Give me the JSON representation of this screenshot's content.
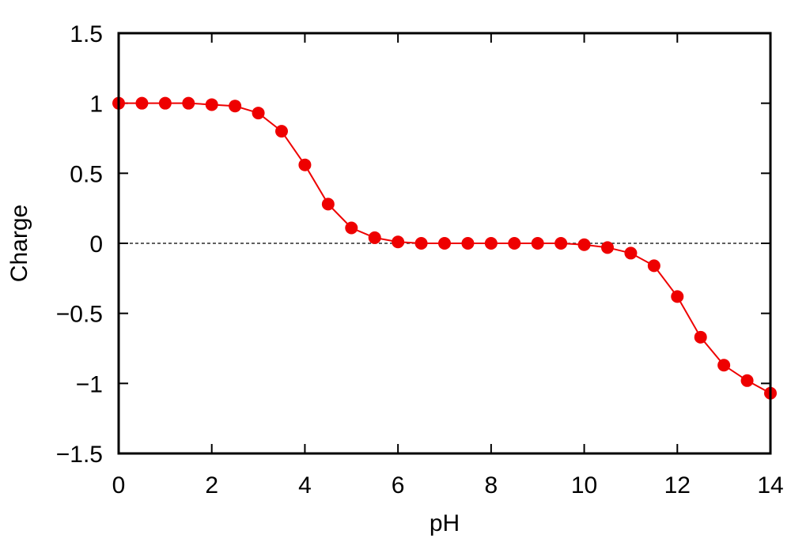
{
  "chart_data": {
    "type": "line",
    "xlabel": "pH",
    "ylabel": "Charge",
    "x": [
      0,
      0.5,
      1,
      1.5,
      2,
      2.5,
      3,
      3.5,
      4,
      4.5,
      5,
      5.5,
      6,
      6.5,
      7,
      7.5,
      8,
      8.5,
      9,
      9.5,
      10,
      10.5,
      11,
      11.5,
      12,
      12.5,
      13,
      13.5,
      14
    ],
    "series": [
      {
        "color": "#ee0000",
        "values": [
          1.0,
          1.0,
          1.0,
          1.0,
          0.99,
          0.98,
          0.93,
          0.8,
          0.56,
          0.28,
          0.11,
          0.04,
          0.01,
          0.0,
          0.0,
          0.0,
          0.0,
          0.0,
          0.0,
          0.0,
          -0.01,
          -0.03,
          -0.07,
          -0.16,
          -0.38,
          -0.67,
          -0.87,
          -0.98,
          -1.07
        ]
      }
    ],
    "xlim": [
      0,
      14
    ],
    "xticks": [
      0,
      2,
      4,
      6,
      8,
      10,
      12,
      14
    ],
    "ylim": [
      -1.5,
      1.5
    ],
    "yticks": [
      {
        "value": -1.5,
        "label": "−1.5"
      },
      {
        "value": -1,
        "label": "−1"
      },
      {
        "value": -0.5,
        "label": "−0.5"
      },
      0,
      0.5,
      1,
      1.5
    ],
    "zero_line": true
  }
}
